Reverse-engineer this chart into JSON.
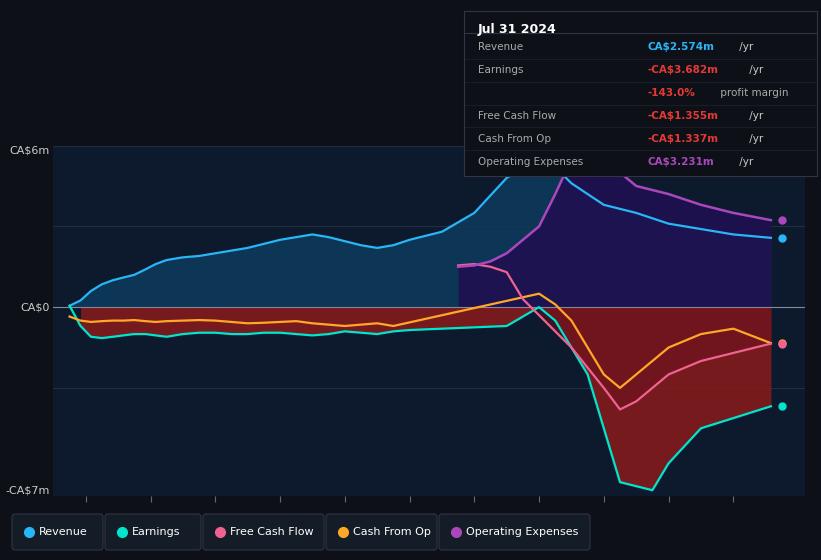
{
  "bg_color": "#0d1117",
  "plot_bg": "#0d1a2e",
  "colors": {
    "revenue": "#29b6f6",
    "earnings": "#00e5cc",
    "free_cash_flow": "#f06292",
    "cash_from_op": "#ffa726",
    "operating_expenses": "#ab47bc"
  },
  "ylim": [
    -7,
    6
  ],
  "xlim": [
    2013.5,
    2025.1
  ],
  "x_ticks": [
    2014,
    2015,
    2016,
    2017,
    2018,
    2019,
    2020,
    2021,
    2022,
    2023,
    2024
  ],
  "revenue": [
    0.05,
    0.25,
    0.6,
    0.85,
    1.0,
    1.1,
    1.2,
    1.4,
    1.6,
    1.75,
    1.85,
    1.9,
    2.0,
    2.1,
    2.2,
    2.35,
    2.5,
    2.6,
    2.7,
    2.6,
    2.45,
    2.3,
    2.2,
    2.3,
    2.5,
    2.8,
    3.5,
    4.8,
    5.5,
    5.2,
    4.6,
    4.2,
    3.8,
    3.5,
    3.1,
    2.9,
    2.7,
    2.574
  ],
  "revenue_t": [
    2013.75,
    2013.92,
    2014.08,
    2014.25,
    2014.42,
    2014.58,
    2014.75,
    2014.92,
    2015.08,
    2015.25,
    2015.5,
    2015.75,
    2016.0,
    2016.25,
    2016.5,
    2016.75,
    2017.0,
    2017.25,
    2017.5,
    2017.75,
    2018.0,
    2018.25,
    2018.5,
    2018.75,
    2019.0,
    2019.5,
    2020.0,
    2020.5,
    2021.0,
    2021.25,
    2021.5,
    2021.75,
    2022.0,
    2022.5,
    2023.0,
    2023.5,
    2024.0,
    2024.58
  ],
  "earnings": [
    0.05,
    -0.7,
    -1.1,
    -1.15,
    -1.1,
    -1.05,
    -1.0,
    -1.0,
    -1.05,
    -1.1,
    -1.0,
    -0.95,
    -0.95,
    -1.0,
    -1.0,
    -0.95,
    -0.95,
    -1.0,
    -1.05,
    -1.0,
    -0.9,
    -0.95,
    -1.0,
    -0.9,
    -0.85,
    -0.8,
    -0.75,
    -0.7,
    0.0,
    -0.5,
    -2.5,
    -4.5,
    -6.5,
    -6.8,
    -5.8,
    -4.5,
    -3.682
  ],
  "earnings_t": [
    2013.75,
    2013.92,
    2014.08,
    2014.25,
    2014.42,
    2014.58,
    2014.75,
    2014.92,
    2015.08,
    2015.25,
    2015.5,
    2015.75,
    2016.0,
    2016.25,
    2016.5,
    2016.75,
    2017.0,
    2017.25,
    2017.5,
    2017.75,
    2018.0,
    2018.25,
    2018.5,
    2018.75,
    2019.0,
    2019.5,
    2020.0,
    2020.5,
    2021.0,
    2021.25,
    2021.75,
    2022.0,
    2022.25,
    2022.75,
    2023.0,
    2023.5,
    2024.58
  ],
  "cash_from_op": [
    -0.35,
    -0.5,
    -0.55,
    -0.52,
    -0.5,
    -0.5,
    -0.48,
    -0.52,
    -0.55,
    -0.52,
    -0.5,
    -0.48,
    -0.5,
    -0.55,
    -0.6,
    -0.58,
    -0.55,
    -0.52,
    -0.6,
    -0.65,
    -0.7,
    -0.65,
    -0.6,
    -0.7,
    0.5,
    0.1,
    -0.5,
    -1.5,
    -2.5,
    -3.0,
    -2.5,
    -2.0,
    -1.5,
    -1.0,
    -0.8,
    -1.337
  ],
  "cash_from_op_t": [
    2013.75,
    2013.92,
    2014.08,
    2014.25,
    2014.42,
    2014.58,
    2014.75,
    2014.92,
    2015.08,
    2015.25,
    2015.5,
    2015.75,
    2016.0,
    2016.25,
    2016.5,
    2016.75,
    2017.0,
    2017.25,
    2017.5,
    2017.75,
    2018.0,
    2018.25,
    2018.5,
    2018.75,
    2021.0,
    2021.25,
    2021.5,
    2021.75,
    2022.0,
    2022.25,
    2022.5,
    2022.75,
    2023.0,
    2023.5,
    2024.0,
    2024.58
  ],
  "free_cash_flow": [
    1.55,
    1.6,
    1.5,
    1.3,
    0.3,
    -0.3,
    -1.5,
    -3.0,
    -3.8,
    -3.5,
    -3.0,
    -2.5,
    -2.0,
    -1.355
  ],
  "free_cash_flow_t": [
    2019.75,
    2020.0,
    2020.25,
    2020.5,
    2020.75,
    2021.0,
    2021.5,
    2022.0,
    2022.25,
    2022.5,
    2022.75,
    2023.0,
    2023.5,
    2024.58
  ],
  "op_exp": [
    1.5,
    1.55,
    1.7,
    2.0,
    3.0,
    4.2,
    5.5,
    6.0,
    5.5,
    5.0,
    4.5,
    4.2,
    3.8,
    3.5,
    3.231
  ],
  "op_exp_t": [
    2019.75,
    2020.0,
    2020.25,
    2020.5,
    2021.0,
    2021.25,
    2021.5,
    2021.75,
    2022.0,
    2022.25,
    2022.5,
    2023.0,
    2023.5,
    2024.0,
    2024.58
  ]
}
